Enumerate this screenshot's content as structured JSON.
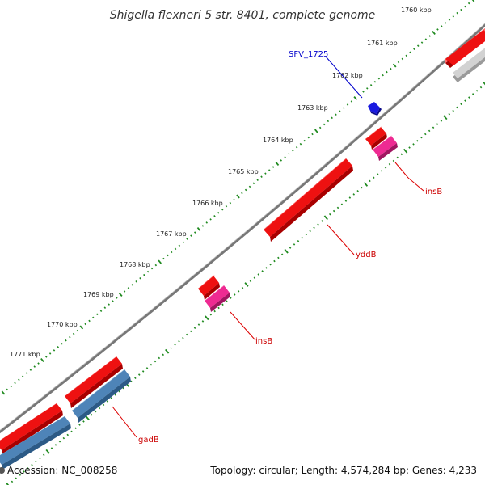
{
  "title": "Shigella flexneri 5 str. 8401, complete genome",
  "footer": {
    "accession": "Accession: NC_008258",
    "summary": "Topology: circular; Length: 4,574,284 bp; Genes: 4,233"
  },
  "kbp_labels": [
    "1760 kbp",
    "1761 kbp",
    "1762 kbp",
    "1763 kbp",
    "1764 kbp",
    "1765 kbp",
    "1766 kbp",
    "1767 kbp",
    "1768 kbp",
    "1769 kbp",
    "1770 kbp",
    "1771 kbp"
  ],
  "gene_labels": {
    "sfv": "SFV_1725",
    "insB_upper": "insB",
    "yddB": "yddB",
    "insB_lower": "insB",
    "gadB": "gadB"
  },
  "colors": {
    "backbone": "#777777",
    "gene_red": "#ee1111",
    "gene_red_dark": "#a80000",
    "gene_pink": "#ee2a92",
    "gene_pink_dark": "#a01560",
    "gene_blue": "#4e84b8",
    "gene_blue_dark": "#2c5a86",
    "gene_gray": "#c8c8c8",
    "gene_darkblue": "#1a1ae0",
    "tick_green": "#1f8a1f",
    "label_red": "#cc0000",
    "label_blue": "#0000cc",
    "leader_red": "#dd0000"
  }
}
